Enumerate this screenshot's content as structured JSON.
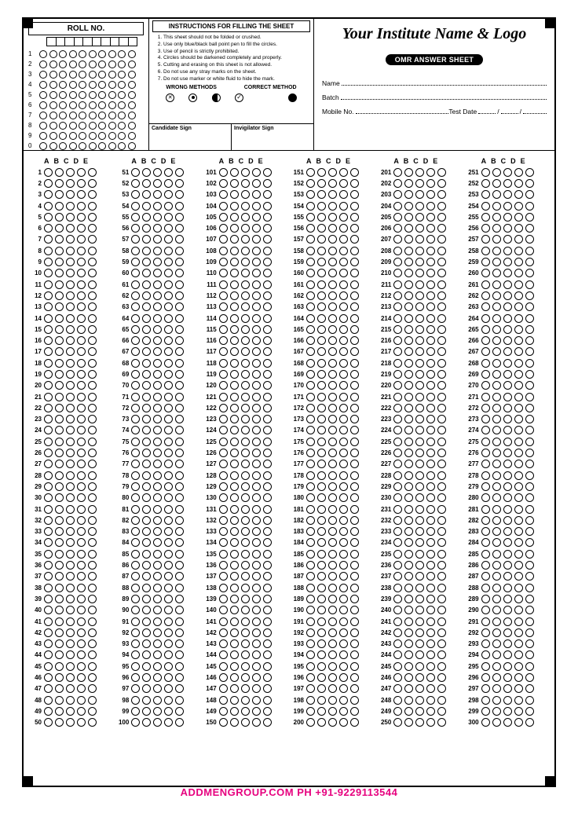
{
  "roll": {
    "title": "ROLL NO.",
    "digit_boxes": 10,
    "rows": [
      1,
      2,
      3,
      4,
      5,
      6,
      7,
      8,
      9,
      0
    ],
    "bubbles_per_row": 10
  },
  "instructions": {
    "title": "INSTRUCTIONS FOR FILLING THE SHEET",
    "items": [
      "This sheet should not be folded or crushed.",
      "Use only blue/black ball point pen to fill the circles.",
      "Use of pencil is strictly prohibited.",
      "Circles should be darkened completely and properly.",
      "Cutting and erasing on this sheet is not allowed.",
      "Do not use any stray marks on the sheet.",
      "Do not use marker or white fluid to hide the mark."
    ],
    "wrong_label": "WRONG METHODS",
    "correct_label": "CORRECT METHOD",
    "candidate_sign": "Candidate Sign",
    "invigilator_sign": "Invigilator Sign"
  },
  "institute": {
    "name_placeholder": "Your Institute Name & Logo",
    "badge": "OMR ANSWER SHEET",
    "fields": {
      "name": "Name",
      "batch": "Batch",
      "mobile": "Mobile No.",
      "test_date": "Test Date",
      "date_sep": "/"
    }
  },
  "answers": {
    "options": [
      "A",
      "B",
      "C",
      "D",
      "E"
    ],
    "columns": 6,
    "rows_per_column": 50,
    "total_questions": 300
  },
  "footer": {
    "text": "ADDMENGROUP.COM   PH +91-9229113544",
    "color": "#e6007e"
  },
  "colors": {
    "border": "#000000",
    "background": "#ffffff"
  }
}
